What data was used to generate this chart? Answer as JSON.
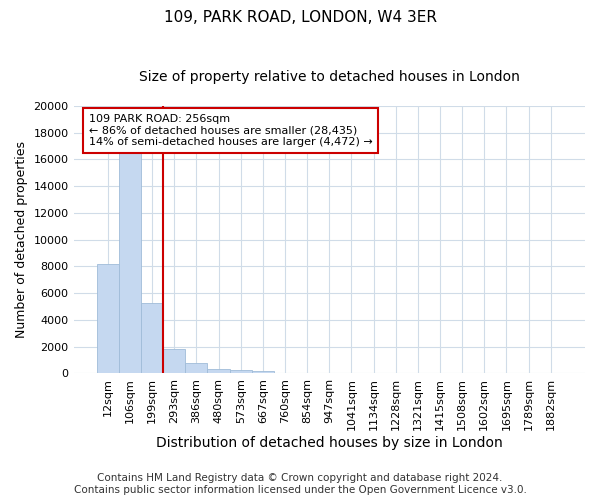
{
  "title": "109, PARK ROAD, LONDON, W4 3ER",
  "subtitle": "Size of property relative to detached houses in London",
  "xlabel": "Distribution of detached houses by size in London",
  "ylabel": "Number of detached properties",
  "categories": [
    "12sqm",
    "106sqm",
    "199sqm",
    "293sqm",
    "386sqm",
    "480sqm",
    "573sqm",
    "667sqm",
    "760sqm",
    "854sqm",
    "947sqm",
    "1041sqm",
    "1134sqm",
    "1228sqm",
    "1321sqm",
    "1415sqm",
    "1508sqm",
    "1602sqm",
    "1695sqm",
    "1789sqm",
    "1882sqm"
  ],
  "values": [
    8200,
    16600,
    5300,
    1850,
    750,
    320,
    250,
    200,
    0,
    0,
    0,
    0,
    0,
    0,
    0,
    0,
    0,
    0,
    0,
    0,
    0
  ],
  "bar_color": "#c5d8f0",
  "bar_edge_color": "#a0bcd8",
  "vline_color": "#cc0000",
  "vline_x": 2.5,
  "annotation_text": "109 PARK ROAD: 256sqm\n← 86% of detached houses are smaller (28,435)\n14% of semi-detached houses are larger (4,472) →",
  "annotation_box_facecolor": "white",
  "annotation_box_edgecolor": "#cc0000",
  "ylim": [
    0,
    20000
  ],
  "yticks": [
    0,
    2000,
    4000,
    6000,
    8000,
    10000,
    12000,
    14000,
    16000,
    18000,
    20000
  ],
  "background_color": "#ffffff",
  "grid_color": "#d0dce8",
  "title_fontsize": 11,
  "subtitle_fontsize": 10,
  "ylabel_fontsize": 9,
  "xlabel_fontsize": 10,
  "tick_fontsize": 8,
  "annotation_fontsize": 8,
  "footer_fontsize": 7.5,
  "footer_line1": "Contains HM Land Registry data © Crown copyright and database right 2024.",
  "footer_line2": "Contains public sector information licensed under the Open Government Licence v3.0."
}
